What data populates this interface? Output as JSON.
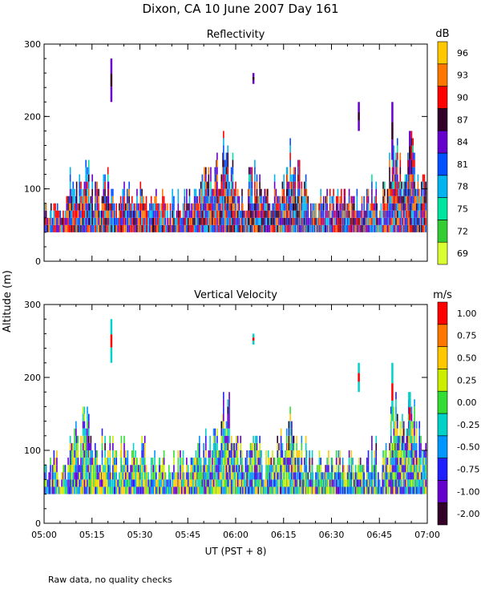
{
  "title": "Dixon, CA 10 June 2007   Day 161",
  "y_axis_label": "Altitude (m)",
  "x_axis_label": "UT  (PST + 8)",
  "footnote": "Raw data, no quality checks",
  "chart_data": [
    {
      "type": "heatmap",
      "title": "Reflectivity",
      "colorbar_unit": "dB",
      "colorbar_ticks": [
        "69",
        "72",
        "75",
        "78",
        "81",
        "84",
        "87",
        "90",
        "93",
        "96"
      ],
      "colorbar_colors": [
        "#d9ff33",
        "#33cc33",
        "#00e6a0",
        "#00b4f0",
        "#0050ff",
        "#6600cc",
        "#33002a",
        "#ff0000",
        "#ff7700",
        "#ffc800"
      ],
      "xlim": [
        0,
        120
      ],
      "x_ticks": [
        "05:00",
        "05:15",
        "05:30",
        "05:45",
        "06:00",
        "06:15",
        "06:30",
        "06:45",
        "07:00"
      ],
      "ylim": [
        0,
        300
      ],
      "y_ticks": [
        0,
        100,
        200,
        300
      ],
      "base_altitude": 40,
      "dominant_range": [
        78,
        90
      ],
      "columns": [
        {
          "t": 1,
          "top": 85
        },
        {
          "t": 3,
          "top": 100
        },
        {
          "t": 5,
          "top": 80
        },
        {
          "t": 7,
          "top": 90
        },
        {
          "t": 9,
          "top": 140
        },
        {
          "t": 11,
          "top": 120
        },
        {
          "t": 13,
          "top": 160
        },
        {
          "t": 15,
          "top": 120
        },
        {
          "t": 17,
          "top": 110
        },
        {
          "t": 19,
          "top": 130
        },
        {
          "t": 21,
          "top": 120
        },
        {
          "t": 23,
          "top": 100
        },
        {
          "t": 25,
          "top": 130
        },
        {
          "t": 27,
          "top": 110
        },
        {
          "t": 29,
          "top": 100
        },
        {
          "t": 31,
          "top": 120
        },
        {
          "t": 33,
          "top": 100
        },
        {
          "t": 35,
          "top": 100
        },
        {
          "t": 37,
          "top": 100
        },
        {
          "t": 39,
          "top": 80
        },
        {
          "t": 41,
          "top": 100
        },
        {
          "t": 43,
          "top": 100
        },
        {
          "t": 45,
          "top": 100
        },
        {
          "t": 47,
          "top": 100
        },
        {
          "t": 49,
          "top": 120
        },
        {
          "t": 51,
          "top": 130
        },
        {
          "t": 53,
          "top": 140
        },
        {
          "t": 55,
          "top": 160
        },
        {
          "t": 57,
          "top": 180
        },
        {
          "t": 59,
          "top": 160
        },
        {
          "t": 61,
          "top": 120
        },
        {
          "t": 63,
          "top": 100
        },
        {
          "t": 65,
          "top": 140
        },
        {
          "t": 67,
          "top": 120
        },
        {
          "t": 69,
          "top": 100
        },
        {
          "t": 71,
          "top": 100
        },
        {
          "t": 73,
          "top": 140
        },
        {
          "t": 75,
          "top": 130
        },
        {
          "t": 77,
          "top": 170
        },
        {
          "t": 79,
          "top": 140
        },
        {
          "t": 81,
          "top": 120
        },
        {
          "t": 83,
          "top": 100
        },
        {
          "t": 85,
          "top": 80
        },
        {
          "t": 87,
          "top": 100
        },
        {
          "t": 89,
          "top": 100
        },
        {
          "t": 91,
          "top": 100
        },
        {
          "t": 93,
          "top": 100
        },
        {
          "t": 95,
          "top": 100
        },
        {
          "t": 97,
          "top": 100
        },
        {
          "t": 99,
          "top": 100
        },
        {
          "t": 101,
          "top": 100
        },
        {
          "t": 103,
          "top": 120
        },
        {
          "t": 105,
          "top": 80
        },
        {
          "t": 107,
          "top": 110
        },
        {
          "t": 109,
          "top": 160
        },
        {
          "t": 111,
          "top": 180
        },
        {
          "t": 113,
          "top": 150
        },
        {
          "t": 115,
          "top": 180
        },
        {
          "t": 117,
          "top": 140
        },
        {
          "t": 119,
          "top": 120
        }
      ],
      "aloft_returns": [
        {
          "t": 21,
          "bottom": 220,
          "top": 280
        },
        {
          "t": 65.5,
          "bottom": 245,
          "top": 260
        },
        {
          "t": 98.5,
          "bottom": 180,
          "top": 220
        },
        {
          "t": 109,
          "bottom": 140,
          "top": 220
        },
        {
          "t": 114.5,
          "bottom": 120,
          "top": 180
        }
      ]
    },
    {
      "type": "heatmap",
      "title": "Vertical Velocity",
      "colorbar_unit": "m/s",
      "colorbar_ticks": [
        "-2.00",
        "-1.00",
        "-0.75",
        "-0.50",
        "-0.25",
        "0.00",
        "0.25",
        "0.50",
        "0.75",
        "1.00"
      ],
      "colorbar_colors": [
        "#33002a",
        "#6600cc",
        "#2020ff",
        "#0096ff",
        "#00d2c8",
        "#33dd33",
        "#ccee00",
        "#ffc800",
        "#ff7700",
        "#ff0000"
      ],
      "xlim": [
        0,
        120
      ],
      "x_ticks": [
        "05:00",
        "05:15",
        "05:30",
        "05:45",
        "06:00",
        "06:15",
        "06:30",
        "06:45",
        "07:00"
      ],
      "ylim": [
        0,
        300
      ],
      "y_ticks": [
        0,
        100,
        200,
        300
      ],
      "base_altitude": 40,
      "dominant_range": [
        -0.75,
        0.5
      ],
      "columns": [
        {
          "t": 1,
          "top": 85
        },
        {
          "t": 3,
          "top": 100
        },
        {
          "t": 5,
          "top": 80
        },
        {
          "t": 7,
          "top": 90
        },
        {
          "t": 9,
          "top": 140
        },
        {
          "t": 11,
          "top": 120
        },
        {
          "t": 13,
          "top": 160
        },
        {
          "t": 15,
          "top": 120
        },
        {
          "t": 17,
          "top": 110
        },
        {
          "t": 19,
          "top": 130
        },
        {
          "t": 21,
          "top": 120
        },
        {
          "t": 23,
          "top": 100
        },
        {
          "t": 25,
          "top": 130
        },
        {
          "t": 27,
          "top": 110
        },
        {
          "t": 29,
          "top": 100
        },
        {
          "t": 31,
          "top": 120
        },
        {
          "t": 33,
          "top": 100
        },
        {
          "t": 35,
          "top": 100
        },
        {
          "t": 37,
          "top": 100
        },
        {
          "t": 39,
          "top": 80
        },
        {
          "t": 41,
          "top": 100
        },
        {
          "t": 43,
          "top": 100
        },
        {
          "t": 45,
          "top": 100
        },
        {
          "t": 47,
          "top": 100
        },
        {
          "t": 49,
          "top": 120
        },
        {
          "t": 51,
          "top": 130
        },
        {
          "t": 53,
          "top": 140
        },
        {
          "t": 55,
          "top": 160
        },
        {
          "t": 57,
          "top": 180
        },
        {
          "t": 59,
          "top": 160
        },
        {
          "t": 61,
          "top": 120
        },
        {
          "t": 63,
          "top": 100
        },
        {
          "t": 65,
          "top": 140
        },
        {
          "t": 67,
          "top": 120
        },
        {
          "t": 69,
          "top": 100
        },
        {
          "t": 71,
          "top": 100
        },
        {
          "t": 73,
          "top": 140
        },
        {
          "t": 75,
          "top": 130
        },
        {
          "t": 77,
          "top": 170
        },
        {
          "t": 79,
          "top": 140
        },
        {
          "t": 81,
          "top": 120
        },
        {
          "t": 83,
          "top": 100
        },
        {
          "t": 85,
          "top": 80
        },
        {
          "t": 87,
          "top": 100
        },
        {
          "t": 89,
          "top": 100
        },
        {
          "t": 91,
          "top": 100
        },
        {
          "t": 93,
          "top": 100
        },
        {
          "t": 95,
          "top": 100
        },
        {
          "t": 97,
          "top": 100
        },
        {
          "t": 99,
          "top": 100
        },
        {
          "t": 101,
          "top": 100
        },
        {
          "t": 103,
          "top": 120
        },
        {
          "t": 105,
          "top": 80
        },
        {
          "t": 107,
          "top": 110
        },
        {
          "t": 109,
          "top": 160
        },
        {
          "t": 111,
          "top": 180
        },
        {
          "t": 113,
          "top": 150
        },
        {
          "t": 115,
          "top": 180
        },
        {
          "t": 117,
          "top": 140
        },
        {
          "t": 119,
          "top": 120
        }
      ],
      "aloft_returns": [
        {
          "t": 21,
          "bottom": 220,
          "top": 280
        },
        {
          "t": 65.5,
          "bottom": 245,
          "top": 260
        },
        {
          "t": 98.5,
          "bottom": 180,
          "top": 220
        },
        {
          "t": 109,
          "bottom": 140,
          "top": 220
        },
        {
          "t": 114.5,
          "bottom": 120,
          "top": 180
        }
      ]
    }
  ]
}
